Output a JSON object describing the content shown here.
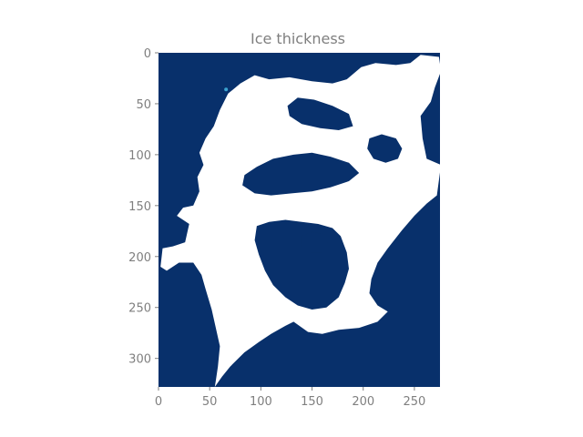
{
  "chart_data": {
    "type": "heatmap",
    "title": "Ice thickness",
    "xlabel": "",
    "ylabel": "",
    "x_ticks": [
      "0",
      "50",
      "100",
      "150",
      "200",
      "250"
    ],
    "y_ticks": [
      "0",
      "50",
      "100",
      "150",
      "200",
      "250",
      "300"
    ],
    "x_tick_values": [
      0,
      50,
      100,
      150,
      200,
      250
    ],
    "y_tick_values": [
      0,
      50,
      100,
      150,
      200,
      250,
      300
    ],
    "xlim": [
      0,
      275
    ],
    "ylim": [
      328,
      0
    ],
    "grid": false,
    "colors": {
      "high_thickness": "#08306b",
      "low_thickness": "#ffffff",
      "spot": "#3ba3d0"
    },
    "regions": {
      "thin_ice_outline": [
        [
          55,
          328
        ],
        [
          62,
          318
        ],
        [
          70,
          308
        ],
        [
          84,
          294
        ],
        [
          98,
          284
        ],
        [
          110,
          276
        ],
        [
          124,
          268
        ],
        [
          132,
          264
        ],
        [
          146,
          274
        ],
        [
          160,
          276
        ],
        [
          176,
          272
        ],
        [
          196,
          270
        ],
        [
          214,
          264
        ],
        [
          224,
          254
        ],
        [
          214,
          248
        ],
        [
          206,
          236
        ],
        [
          208,
          222
        ],
        [
          214,
          206
        ],
        [
          224,
          192
        ],
        [
          238,
          174
        ],
        [
          250,
          160
        ],
        [
          262,
          148
        ],
        [
          272,
          140
        ],
        [
          276,
          110
        ],
        [
          262,
          104
        ],
        [
          258,
          84
        ],
        [
          256,
          62
        ],
        [
          266,
          48
        ],
        [
          270,
          34
        ],
        [
          276,
          18
        ],
        [
          274,
          4
        ],
        [
          256,
          2
        ],
        [
          246,
          10
        ],
        [
          232,
          12
        ],
        [
          212,
          10
        ],
        [
          198,
          14
        ],
        [
          184,
          26
        ],
        [
          170,
          30
        ],
        [
          150,
          28
        ],
        [
          128,
          24
        ],
        [
          108,
          26
        ],
        [
          94,
          22
        ],
        [
          80,
          30
        ],
        [
          68,
          40
        ],
        [
          60,
          56
        ],
        [
          54,
          72
        ],
        [
          46,
          84
        ],
        [
          40,
          98
        ],
        [
          44,
          110
        ],
        [
          38,
          122
        ],
        [
          40,
          136
        ],
        [
          34,
          150
        ],
        [
          24,
          152
        ],
        [
          18,
          160
        ],
        [
          30,
          168
        ],
        [
          26,
          186
        ],
        [
          14,
          190
        ],
        [
          4,
          192
        ],
        [
          2,
          210
        ],
        [
          8,
          214
        ],
        [
          20,
          206
        ],
        [
          34,
          206
        ],
        [
          42,
          218
        ],
        [
          46,
          232
        ],
        [
          52,
          252
        ],
        [
          56,
          270
        ],
        [
          60,
          288
        ],
        [
          58,
          308
        ],
        [
          56,
          322
        ]
      ],
      "thick_ice_holes": [
        [
          [
            136,
            44
          ],
          [
            152,
            46
          ],
          [
            170,
            52
          ],
          [
            186,
            60
          ],
          [
            190,
            72
          ],
          [
            176,
            76
          ],
          [
            158,
            74
          ],
          [
            140,
            70
          ],
          [
            128,
            62
          ],
          [
            126,
            52
          ]
        ],
        [
          [
            84,
            120
          ],
          [
            96,
            112
          ],
          [
            112,
            104
          ],
          [
            132,
            100
          ],
          [
            150,
            98
          ],
          [
            168,
            102
          ],
          [
            186,
            108
          ],
          [
            196,
            118
          ],
          [
            186,
            126
          ],
          [
            168,
            132
          ],
          [
            150,
            136
          ],
          [
            130,
            138
          ],
          [
            110,
            140
          ],
          [
            94,
            138
          ],
          [
            82,
            130
          ]
        ],
        [
          [
            96,
            170
          ],
          [
            108,
            166
          ],
          [
            124,
            164
          ],
          [
            140,
            166
          ],
          [
            156,
            168
          ],
          [
            170,
            172
          ],
          [
            178,
            180
          ],
          [
            184,
            196
          ],
          [
            186,
            212
          ],
          [
            182,
            226
          ],
          [
            176,
            240
          ],
          [
            164,
            250
          ],
          [
            150,
            252
          ],
          [
            136,
            248
          ],
          [
            124,
            240
          ],
          [
            112,
            228
          ],
          [
            104,
            214
          ],
          [
            98,
            198
          ],
          [
            94,
            184
          ]
        ],
        [
          [
            206,
            84
          ],
          [
            218,
            80
          ],
          [
            232,
            84
          ],
          [
            238,
            94
          ],
          [
            234,
            104
          ],
          [
            222,
            108
          ],
          [
            210,
            104
          ],
          [
            204,
            94
          ]
        ]
      ],
      "thick_ice_islands": [
        [
          [
            140,
            180
          ],
          [
            150,
            176
          ],
          [
            162,
            178
          ],
          [
            166,
            188
          ],
          [
            160,
            196
          ],
          [
            148,
            196
          ],
          [
            140,
            190
          ]
        ]
      ],
      "spot": [
        66,
        36
      ]
    }
  }
}
